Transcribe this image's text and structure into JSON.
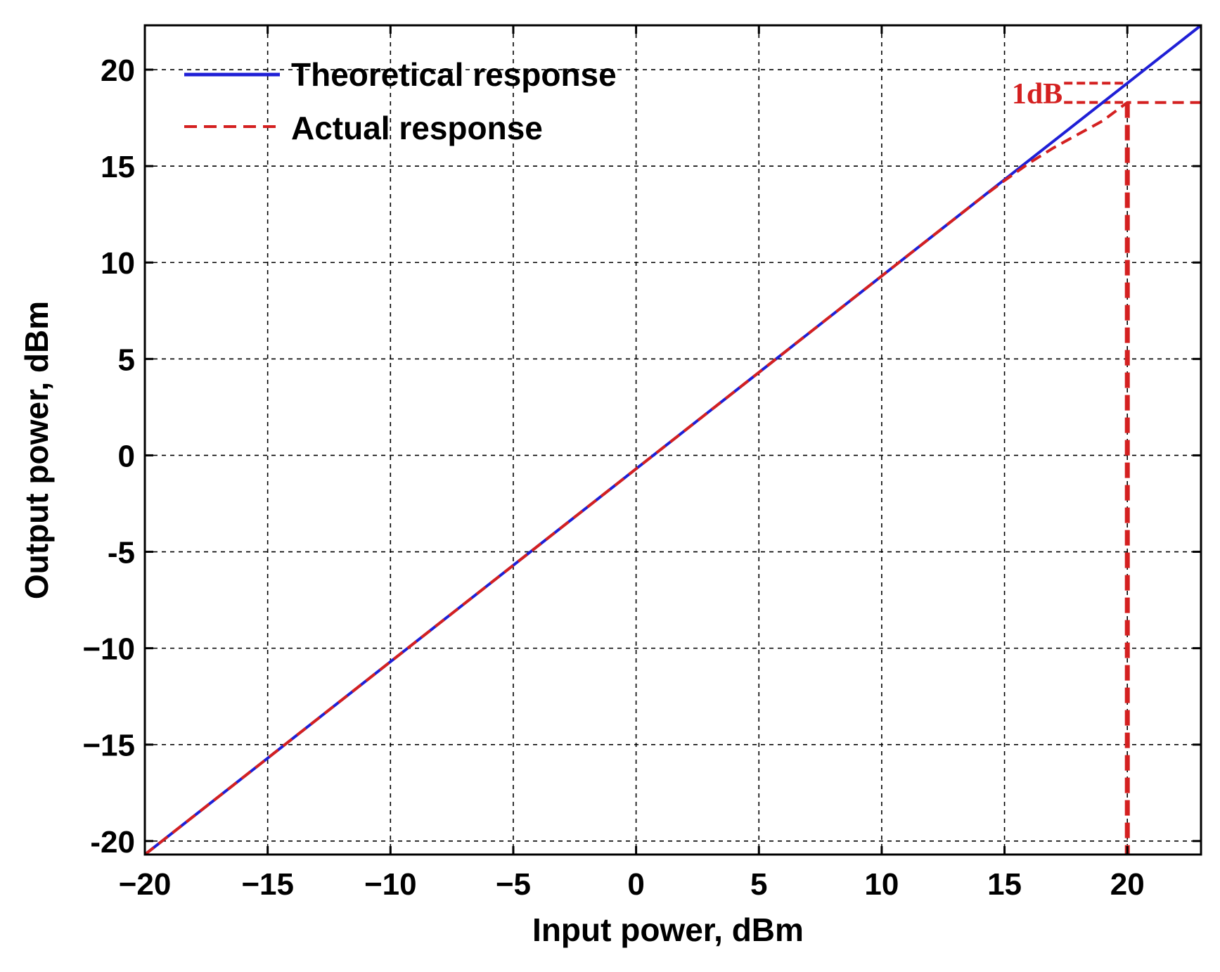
{
  "chart_data": {
    "type": "line",
    "title": "",
    "xlabel": "Input power, dBm",
    "ylabel": "Output power, dBm",
    "xlim": [
      -20,
      23
    ],
    "ylim": [
      -20.7,
      22.3
    ],
    "grid": true,
    "legend_position": "top-left",
    "x_ticks": [
      {
        "value": -20,
        "label": "−20"
      },
      {
        "value": -15,
        "label": "−15"
      },
      {
        "value": -10,
        "label": "−10"
      },
      {
        "value": -5,
        "label": "−5"
      },
      {
        "value": 0,
        "label": "0"
      },
      {
        "value": 5,
        "label": "5"
      },
      {
        "value": 10,
        "label": "10"
      },
      {
        "value": 15,
        "label": "15"
      },
      {
        "value": 20,
        "label": "20"
      }
    ],
    "y_ticks": [
      {
        "value": -20,
        "label": "-20"
      },
      {
        "value": -15,
        "label": "−15"
      },
      {
        "value": -10,
        "label": "−10"
      },
      {
        "value": -5,
        "label": "-5"
      },
      {
        "value": 0,
        "label": "0"
      },
      {
        "value": 5,
        "label": "5"
      },
      {
        "value": 10,
        "label": "10"
      },
      {
        "value": 15,
        "label": "15"
      },
      {
        "value": 20,
        "label": "20"
      }
    ],
    "series": [
      {
        "name": "Theoretical response",
        "color": "#1f1fd6",
        "style": "solid",
        "x": [
          -20,
          -15,
          -10,
          -5,
          0,
          5,
          10,
          15,
          20,
          23
        ],
        "y": [
          -20.7,
          -15.7,
          -10.7,
          -5.7,
          -0.7,
          4.3,
          9.3,
          14.3,
          19.3,
          22.3
        ]
      },
      {
        "name": "Actual response",
        "color": "#d42020",
        "style": "dashed",
        "x": [
          -20,
          -15,
          -10,
          -5,
          0,
          5,
          10,
          14,
          15,
          16,
          17,
          18,
          19,
          20,
          21,
          22,
          23
        ],
        "y": [
          -20.7,
          -15.7,
          -10.7,
          -5.7,
          -0.7,
          4.3,
          9.3,
          13.3,
          14.25,
          15.15,
          15.95,
          16.65,
          17.35,
          18.3,
          18.3,
          18.3,
          18.3
        ]
      }
    ],
    "annotations": [
      {
        "text": "1dB",
        "color": "#d42020",
        "x": 20,
        "y_from": 18.3,
        "y_to": 19.3,
        "marker_line_x": 20
      }
    ]
  }
}
